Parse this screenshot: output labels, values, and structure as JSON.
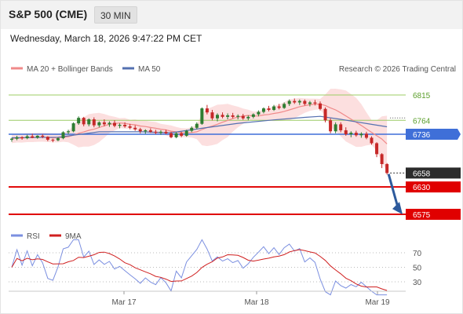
{
  "header": {
    "symbol": "S&P 500 (CME)",
    "interval": "30 MIN"
  },
  "datetime": "Wednesday, March 18, 2026 9:47:22 PM CET",
  "legend": {
    "ma20_label": "MA 20 + Bollinger Bands",
    "ma50_label": "MA 50",
    "credit": "Research © 2026 Trading Central"
  },
  "rsi_legend": {
    "rsi_label": "RSI",
    "ma_label": "9MA"
  },
  "colors": {
    "up": "#2e7d32",
    "down": "#c62828",
    "bands": "#fbd4d4",
    "ma20": "#f08a8a",
    "ma50": "#5470b0",
    "pivot": "#3f6fd8",
    "support": "#e00000",
    "resistance": "#9ccc65",
    "arrow": "#2d5a9c",
    "rsi": "#7b8fe0",
    "rsi_ma": "#d02020"
  },
  "chart_data": {
    "type": "candlestick",
    "x_labels": [
      "Mar 17",
      "Mar 18",
      "Mar 19"
    ],
    "last_price": 6658,
    "levels": [
      {
        "label": "6815",
        "value": 6815,
        "kind": "resistance"
      },
      {
        "label": "6764",
        "value": 6764,
        "kind": "resistance"
      },
      {
        "label": "6736",
        "value": 6736,
        "kind": "pivot"
      },
      {
        "label": "6658",
        "value": 6658,
        "kind": "last"
      },
      {
        "label": "6630",
        "value": 6630,
        "kind": "support"
      },
      {
        "label": "6575",
        "value": 6575,
        "kind": "support"
      }
    ],
    "target_arrow": {
      "from": 6656,
      "to": 6578
    },
    "candles": [
      [
        6725,
        6729,
        6721,
        6727
      ],
      [
        6727,
        6733,
        6724,
        6730
      ],
      [
        6730,
        6732,
        6725,
        6728
      ],
      [
        6728,
        6735,
        6726,
        6732
      ],
      [
        6732,
        6737,
        6728,
        6729
      ],
      [
        6729,
        6734,
        6727,
        6733
      ],
      [
        6733,
        6736,
        6728,
        6731
      ],
      [
        6731,
        6732,
        6722,
        6725
      ],
      [
        6725,
        6727,
        6720,
        6724
      ],
      [
        6724,
        6730,
        6722,
        6728
      ],
      [
        6728,
        6742,
        6726,
        6740
      ],
      [
        6740,
        6745,
        6736,
        6742
      ],
      [
        6742,
        6760,
        6740,
        6758
      ],
      [
        6758,
        6772,
        6755,
        6769
      ],
      [
        6769,
        6771,
        6752,
        6756
      ],
      [
        6756,
        6768,
        6752,
        6766
      ],
      [
        6766,
        6770,
        6750,
        6754
      ],
      [
        6754,
        6762,
        6750,
        6760
      ],
      [
        6760,
        6766,
        6752,
        6756
      ],
      [
        6756,
        6762,
        6751,
        6759
      ],
      [
        6759,
        6764,
        6750,
        6753
      ],
      [
        6753,
        6758,
        6748,
        6755
      ],
      [
        6755,
        6760,
        6749,
        6752
      ],
      [
        6752,
        6757,
        6746,
        6749
      ],
      [
        6749,
        6754,
        6743,
        6746
      ],
      [
        6746,
        6749,
        6738,
        6742
      ],
      [
        6742,
        6746,
        6737,
        6744
      ],
      [
        6744,
        6748,
        6739,
        6741
      ],
      [
        6741,
        6745,
        6736,
        6739
      ],
      [
        6739,
        6744,
        6735,
        6741
      ],
      [
        6741,
        6745,
        6736,
        6738
      ],
      [
        6738,
        6741,
        6728,
        6730
      ],
      [
        6730,
        6740,
        6728,
        6738
      ],
      [
        6738,
        6741,
        6730,
        6733
      ],
      [
        6733,
        6745,
        6731,
        6743
      ],
      [
        6743,
        6752,
        6740,
        6749
      ],
      [
        6749,
        6760,
        6746,
        6757
      ],
      [
        6757,
        6790,
        6755,
        6788
      ],
      [
        6788,
        6795,
        6776,
        6780
      ],
      [
        6780,
        6785,
        6764,
        6768
      ],
      [
        6768,
        6778,
        6762,
        6775
      ],
      [
        6775,
        6780,
        6768,
        6771
      ],
      [
        6771,
        6778,
        6766,
        6774
      ],
      [
        6774,
        6779,
        6768,
        6771
      ],
      [
        6771,
        6776,
        6766,
        6773
      ],
      [
        6773,
        6777,
        6765,
        6768
      ],
      [
        6768,
        6774,
        6764,
        6771
      ],
      [
        6771,
        6778,
        6768,
        6776
      ],
      [
        6776,
        6784,
        6772,
        6781
      ],
      [
        6781,
        6790,
        6778,
        6788
      ],
      [
        6788,
        6793,
        6782,
        6785
      ],
      [
        6785,
        6795,
        6783,
        6792
      ],
      [
        6792,
        6797,
        6786,
        6789
      ],
      [
        6789,
        6800,
        6787,
        6797
      ],
      [
        6797,
        6806,
        6793,
        6803
      ],
      [
        6803,
        6808,
        6797,
        6800
      ],
      [
        6800,
        6806,
        6795,
        6803
      ],
      [
        6803,
        6806,
        6794,
        6797
      ],
      [
        6797,
        6803,
        6792,
        6800
      ],
      [
        6800,
        6805,
        6794,
        6798
      ],
      [
        6798,
        6802,
        6784,
        6787
      ],
      [
        6787,
        6790,
        6760,
        6764
      ],
      [
        6764,
        6768,
        6738,
        6742
      ],
      [
        6742,
        6760,
        6738,
        6756
      ],
      [
        6756,
        6760,
        6740,
        6744
      ],
      [
        6744,
        6750,
        6733,
        6736
      ],
      [
        6736,
        6742,
        6730,
        6739
      ],
      [
        6739,
        6743,
        6731,
        6734
      ],
      [
        6734,
        6740,
        6729,
        6737
      ],
      [
        6737,
        6741,
        6726,
        6729
      ],
      [
        6729,
        6732,
        6715,
        6718
      ],
      [
        6718,
        6720,
        6690,
        6696
      ],
      [
        6696,
        6698,
        6668,
        6676
      ],
      [
        6676,
        6678,
        6655,
        6658
      ]
    ],
    "ma50": [
      [
        0,
        6729
      ],
      [
        9,
        6730
      ],
      [
        17,
        6741
      ],
      [
        25,
        6741
      ],
      [
        31,
        6739
      ],
      [
        37,
        6748
      ],
      [
        44,
        6758
      ],
      [
        51,
        6765
      ],
      [
        57,
        6770
      ],
      [
        60,
        6772
      ],
      [
        64,
        6766
      ],
      [
        67,
        6761
      ],
      [
        70,
        6756
      ],
      [
        73,
        6751
      ]
    ],
    "rsi": {
      "y_ticks": [
        70,
        50,
        30
      ],
      "ylim": [
        10,
        90
      ]
    }
  }
}
